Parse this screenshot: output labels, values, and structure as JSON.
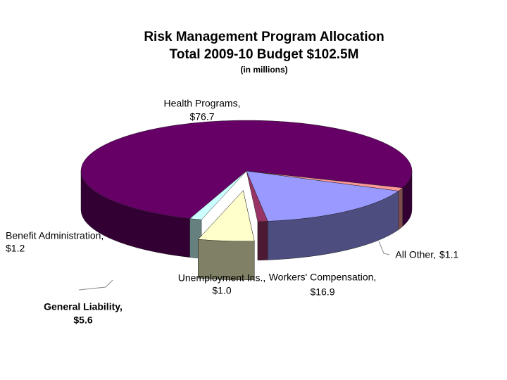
{
  "chart_data": {
    "type": "pie3d",
    "title": "Risk Management Program Allocation",
    "subtitle": "Total 2009-10 Budget $102.5M",
    "note": "(in millions)",
    "categories": [
      "Health Programs,",
      "All Other,",
      "Workers' Compensation,",
      "Unemployment Ins.,",
      "General Liability,",
      "Benefit Administration,"
    ],
    "values": [
      76.7,
      1.1,
      16.9,
      1.0,
      5.6,
      1.2
    ],
    "value_labels": [
      "$76.7",
      "$1.1",
      "$16.9",
      "$1.0",
      "$5.6",
      "$1.2"
    ],
    "colors": [
      "#660066",
      "#ff9999",
      "#9999ff",
      "#993366",
      "#ffffcc",
      "#ccffff"
    ],
    "exploded": [
      4
    ]
  }
}
